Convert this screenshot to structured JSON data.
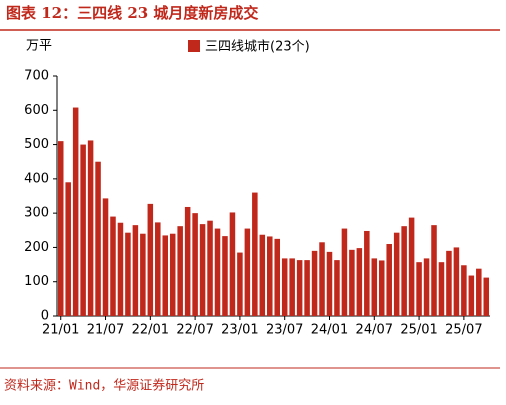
{
  "chart_data": {
    "type": "bar",
    "title": "图表 12：三四线 23 城月度新房成交",
    "y_label": "万平",
    "source": "资料来源：Wind，华源证券研究所",
    "series": [
      {
        "name": "三四线城市(23个)",
        "color": "#c0281c",
        "values": [
          510,
          390,
          608,
          500,
          512,
          450,
          343,
          290,
          272,
          243,
          265,
          240,
          327,
          273,
          235,
          240,
          262,
          318,
          300,
          268,
          278,
          255,
          233,
          302,
          185,
          255,
          360,
          237,
          232,
          225,
          168,
          168,
          163,
          163,
          190,
          215,
          187,
          163,
          255,
          193,
          198,
          248,
          168,
          162,
          210,
          243,
          262,
          287,
          157,
          168,
          265,
          157,
          190,
          200,
          148,
          118,
          138,
          112
        ]
      }
    ],
    "categories": [
      "21/01",
      null,
      null,
      null,
      null,
      null,
      "21/07",
      null,
      null,
      null,
      null,
      null,
      "22/01",
      null,
      null,
      null,
      null,
      null,
      "22/07",
      null,
      null,
      null,
      null,
      null,
      "23/01",
      null,
      null,
      null,
      null,
      null,
      "23/07",
      null,
      null,
      null,
      null,
      null,
      "24/01",
      null,
      null,
      null,
      null,
      null,
      "24/07",
      null,
      null,
      null,
      null,
      null,
      "25/01",
      null,
      null,
      null,
      null,
      null,
      "25/07",
      null,
      null,
      null
    ],
    "ylim": [
      0,
      700
    ],
    "yticks": [
      0,
      100,
      200,
      300,
      400,
      500,
      600,
      700
    ]
  }
}
